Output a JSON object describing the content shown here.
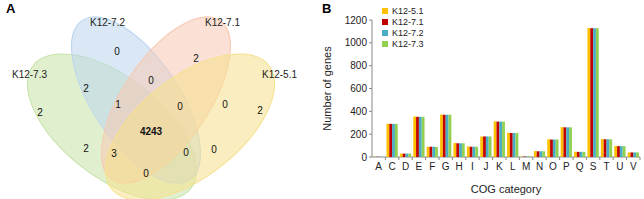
{
  "chart_data": [
    {
      "type": "venn",
      "title": "A",
      "sets": [
        {
          "name": "K12-7.3",
          "color": "#c6e3a8"
        },
        {
          "name": "K12-7.2",
          "color": "#bcd6ef"
        },
        {
          "name": "K12-7.1",
          "color": "#f8c9b3"
        },
        {
          "name": "K12-5.1",
          "color": "#f6e08c"
        }
      ],
      "regions": [
        {
          "sets": [
            "K12-7.3"
          ],
          "value": 2
        },
        {
          "sets": [
            "K12-7.2"
          ],
          "value": 0
        },
        {
          "sets": [
            "K12-7.1"
          ],
          "value": 2
        },
        {
          "sets": [
            "K12-5.1"
          ],
          "value": 2
        },
        {
          "sets": [
            "K12-7.3",
            "K12-7.2"
          ],
          "value": 2
        },
        {
          "sets": [
            "K12-7.2",
            "K12-7.1"
          ],
          "value": 0
        },
        {
          "sets": [
            "K12-7.1",
            "K12-5.1"
          ],
          "value": 0
        },
        {
          "sets": [
            "K12-7.3",
            "K12-7.2",
            "K12-7.1"
          ],
          "value": 1
        },
        {
          "sets": [
            "K12-7.2",
            "K12-7.1",
            "K12-5.1"
          ],
          "value": 0
        },
        {
          "sets": [
            "K12-7.3",
            "K12-7.2",
            "K12-7.1",
            "K12-5.1"
          ],
          "value": 4243
        },
        {
          "sets": [
            "K12-7.3",
            "K12-7.1"
          ],
          "value": 2
        },
        {
          "sets": [
            "K12-7.3",
            "K12-7.1",
            "K12-5.1"
          ],
          "value": 3
        },
        {
          "sets": [
            "K12-7.3",
            "K12-7.2",
            "K12-5.1"
          ],
          "value": 0
        },
        {
          "sets": [
            "K12-7.2",
            "K12-5.1"
          ],
          "value": 0
        },
        {
          "sets": [
            "K12-7.3",
            "K12-5.1"
          ],
          "value": 0
        }
      ]
    },
    {
      "type": "bar",
      "title": "B",
      "x_label": "COG category",
      "y_label": "Number of genes",
      "categories": [
        "A",
        "C",
        "D",
        "E",
        "F",
        "G",
        "H",
        "I",
        "J",
        "K",
        "L",
        "M",
        "N",
        "O",
        "P",
        "Q",
        "S",
        "T",
        "U",
        "V"
      ],
      "series": [
        {
          "name": "K12-5.1",
          "color": "#ffc000",
          "values": [
            2,
            292,
            30,
            355,
            90,
            372,
            122,
            92,
            180,
            312,
            212,
            4,
            52,
            155,
            262,
            46,
            1130,
            157,
            96,
            40
          ]
        },
        {
          "name": "K12-7.1",
          "color": "#c00000",
          "values": [
            2,
            290,
            30,
            352,
            90,
            370,
            120,
            90,
            180,
            310,
            210,
            4,
            50,
            153,
            260,
            45,
            1128,
            155,
            95,
            40
          ]
        },
        {
          "name": "K12-7.2",
          "color": "#4bacc6",
          "values": [
            2,
            290,
            30,
            352,
            90,
            370,
            120,
            90,
            180,
            310,
            210,
            4,
            50,
            153,
            260,
            45,
            1128,
            155,
            95,
            40
          ]
        },
        {
          "name": "K12-7.3",
          "color": "#92d050",
          "values": [
            2,
            290,
            30,
            352,
            88,
            370,
            120,
            90,
            180,
            310,
            210,
            4,
            50,
            153,
            260,
            45,
            1128,
            155,
            95,
            40
          ]
        }
      ],
      "ylim": [
        0,
        1200
      ],
      "yticks": [
        0,
        200,
        400,
        600,
        800,
        1000,
        1200
      ],
      "legend": "upper-left"
    }
  ]
}
